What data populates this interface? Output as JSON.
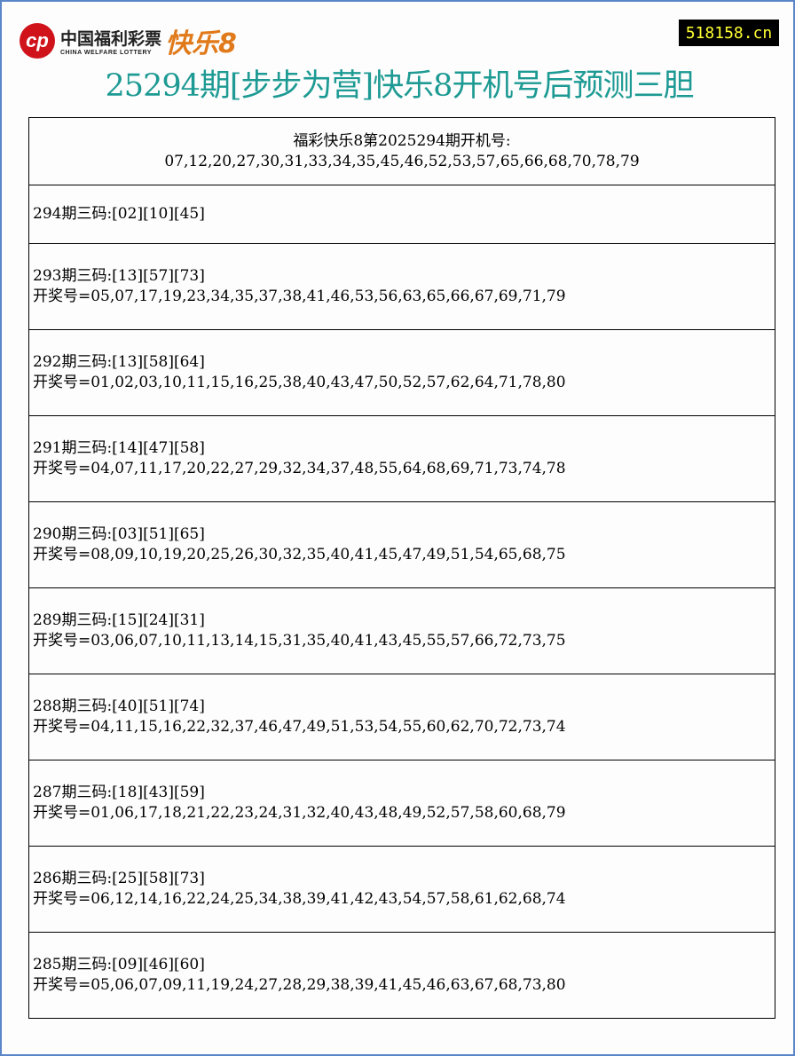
{
  "header": {
    "logo_cn": "中国福利彩票",
    "logo_en": "CHINA WELFARE LOTTERY",
    "logo_game": "快乐8",
    "site": "518158.cn",
    "title": "25294期[步步为营]快乐8开机号后预测三胆"
  },
  "draw": {
    "label": "福彩快乐8第2025294期开机号:",
    "numbers": "07,12,20,27,30,31,33,34,35,45,46,52,53,57,65,66,68,70,78,79"
  },
  "current": {
    "pick": "294期三码:[02][10][45]"
  },
  "rows": [
    {
      "pick": "293期三码:[13][57][73]",
      "result": "开奖号=05,07,17,19,23,34,35,37,38,41,46,53,56,63,65,66,67,69,71,79"
    },
    {
      "pick": "292期三码:[13][58][64]",
      "result": "开奖号=01,02,03,10,11,15,16,25,38,40,43,47,50,52,57,62,64,71,78,80"
    },
    {
      "pick": "291期三码:[14][47][58]",
      "result": "开奖号=04,07,11,17,20,22,27,29,32,34,37,48,55,64,68,69,71,73,74,78"
    },
    {
      "pick": "290期三码:[03][51][65]",
      "result": "开奖号=08,09,10,19,20,25,26,30,32,35,40,41,45,47,49,51,54,65,68,75"
    },
    {
      "pick": "289期三码:[15][24][31]",
      "result": "开奖号=03,06,07,10,11,13,14,15,31,35,40,41,43,45,55,57,66,72,73,75"
    },
    {
      "pick": "288期三码:[40][51][74]",
      "result": "开奖号=04,11,15,16,22,32,37,46,47,49,51,53,54,55,60,62,70,72,73,74"
    },
    {
      "pick": "287期三码:[18][43][59]",
      "result": "开奖号=01,06,17,18,21,22,23,24,31,32,40,43,48,49,52,57,58,60,68,79"
    },
    {
      "pick": "286期三码:[25][58][73]",
      "result": "开奖号=06,12,14,16,22,24,25,34,38,39,41,42,43,54,57,58,61,62,68,74"
    },
    {
      "pick": "285期三码:[09][46][60]",
      "result": "开奖号=05,06,07,09,11,19,24,27,28,29,38,39,41,45,46,63,67,68,73,80"
    }
  ]
}
